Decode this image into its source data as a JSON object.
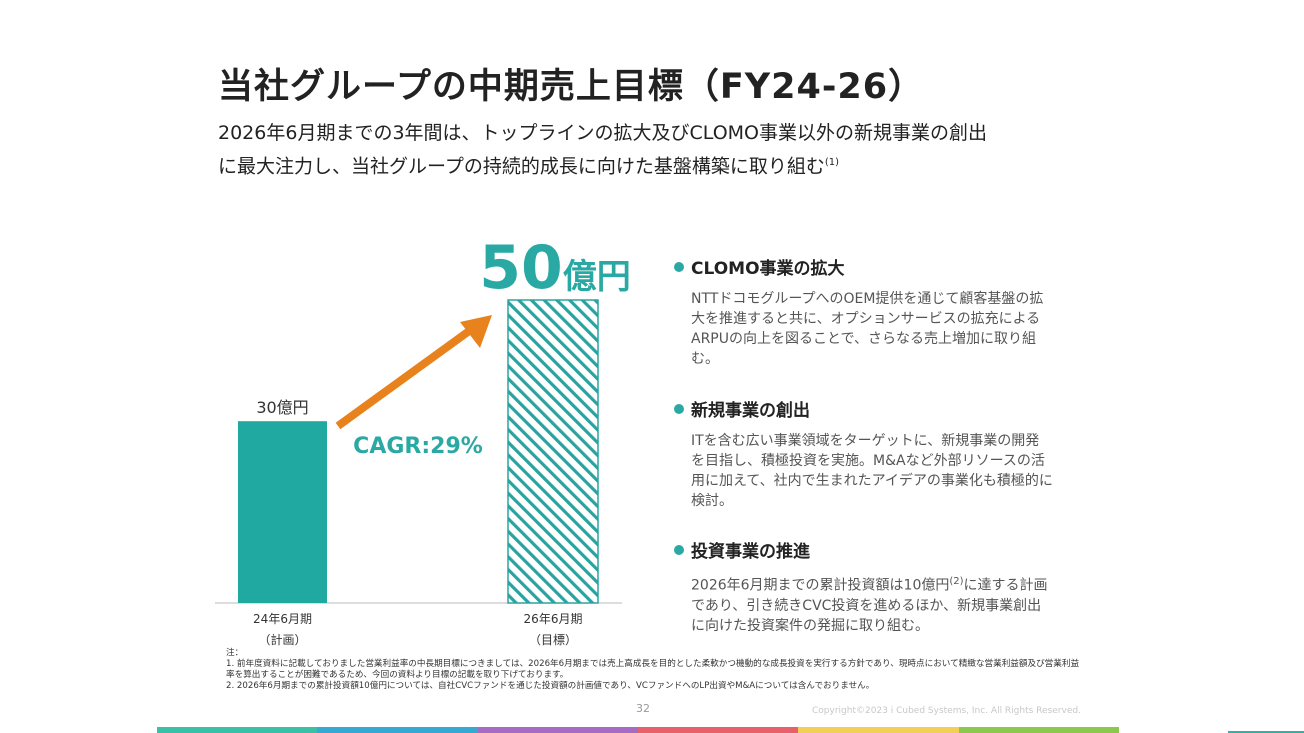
{
  "title": "当社グループの中期売上目標（FY24-26）",
  "subtitle": {
    "line1": "2026年6月期までの3年間は、トップラインの拡大及びCLOMO事業以外の新規事業の創出",
    "line2": "に最大注力し、当社グループの持続的成長に向けた基盤構築に取り組む",
    "footnote_mark": "(1)"
  },
  "chart_data": {
    "type": "bar",
    "categories": [
      "24年6月期",
      "26年6月期"
    ],
    "category_sublabels": [
      "（計画）",
      "（目標）"
    ],
    "values": [
      30,
      50
    ],
    "value_labels": [
      "30億円"
    ],
    "highlight_value": {
      "number": "50",
      "unit": "億円"
    },
    "annotation": "CAGR:29%",
    "bar_styles": [
      "solid",
      "hatched"
    ],
    "ylim": [
      0,
      60
    ],
    "grid": false,
    "colors": {
      "bar": "#1fa9a1",
      "hatch": "#2aa3a0",
      "arrow": "#e8821c",
      "highlight": "#2aa9a4"
    }
  },
  "sections": [
    {
      "heading": "CLOMO事業の拡大",
      "body": "NTTドコモグループへのOEM提供を通じて顧客基盤の拡大を推進すると共に、オプションサービスの拡充によるARPUの向上を図ることで、さらなる売上増加に取り組む。"
    },
    {
      "heading": "新規事業の創出",
      "body": "ITを含む広い事業領域をターゲットに、新規事業の開発を目指し、積極投資を実施。M&Aなど外部リソースの活用に加えて、社内で生まれたアイデアの事業化も積極的に検討。"
    },
    {
      "heading": "投資事業の推進",
      "body_pre": "2026年6月期までの累計投資額は10億円",
      "footnote_mark": "(2)",
      "body_post": "に達する計画であり、引き続きCVC投資を進めるほか、新規事業創出に向けた投資案件の発掘に取り組む。"
    }
  ],
  "notes": {
    "label": "注：",
    "items": [
      "1. 前年度資料に記載しておりました営業利益率の中長期目標につきましては、2026年6月期までは売上高成長を目的とした柔軟かつ機動的な成長投資を実行する方針であり、現時点において精緻な営業利益額及び営業利益率を算出することが困難であるため、今回の資料より目標の記載を取り下げております。",
      "2. 2026年6月期までの累計投資額10億円については、自社CVCファンドを通じた投資額の計画値であり、VCファンドへのLP出資やM&Aについては含んでおりません。"
    ]
  },
  "page_number": "32",
  "copyright": "Copyright©2023 i Cubed Systems, Inc. All Rights Reserved.",
  "bottom_bar_colors": [
    "#3bc0a8",
    "#35a8d4",
    "#a66bc4",
    "#e8606a",
    "#f2cf56",
    "#8cc84b"
  ]
}
